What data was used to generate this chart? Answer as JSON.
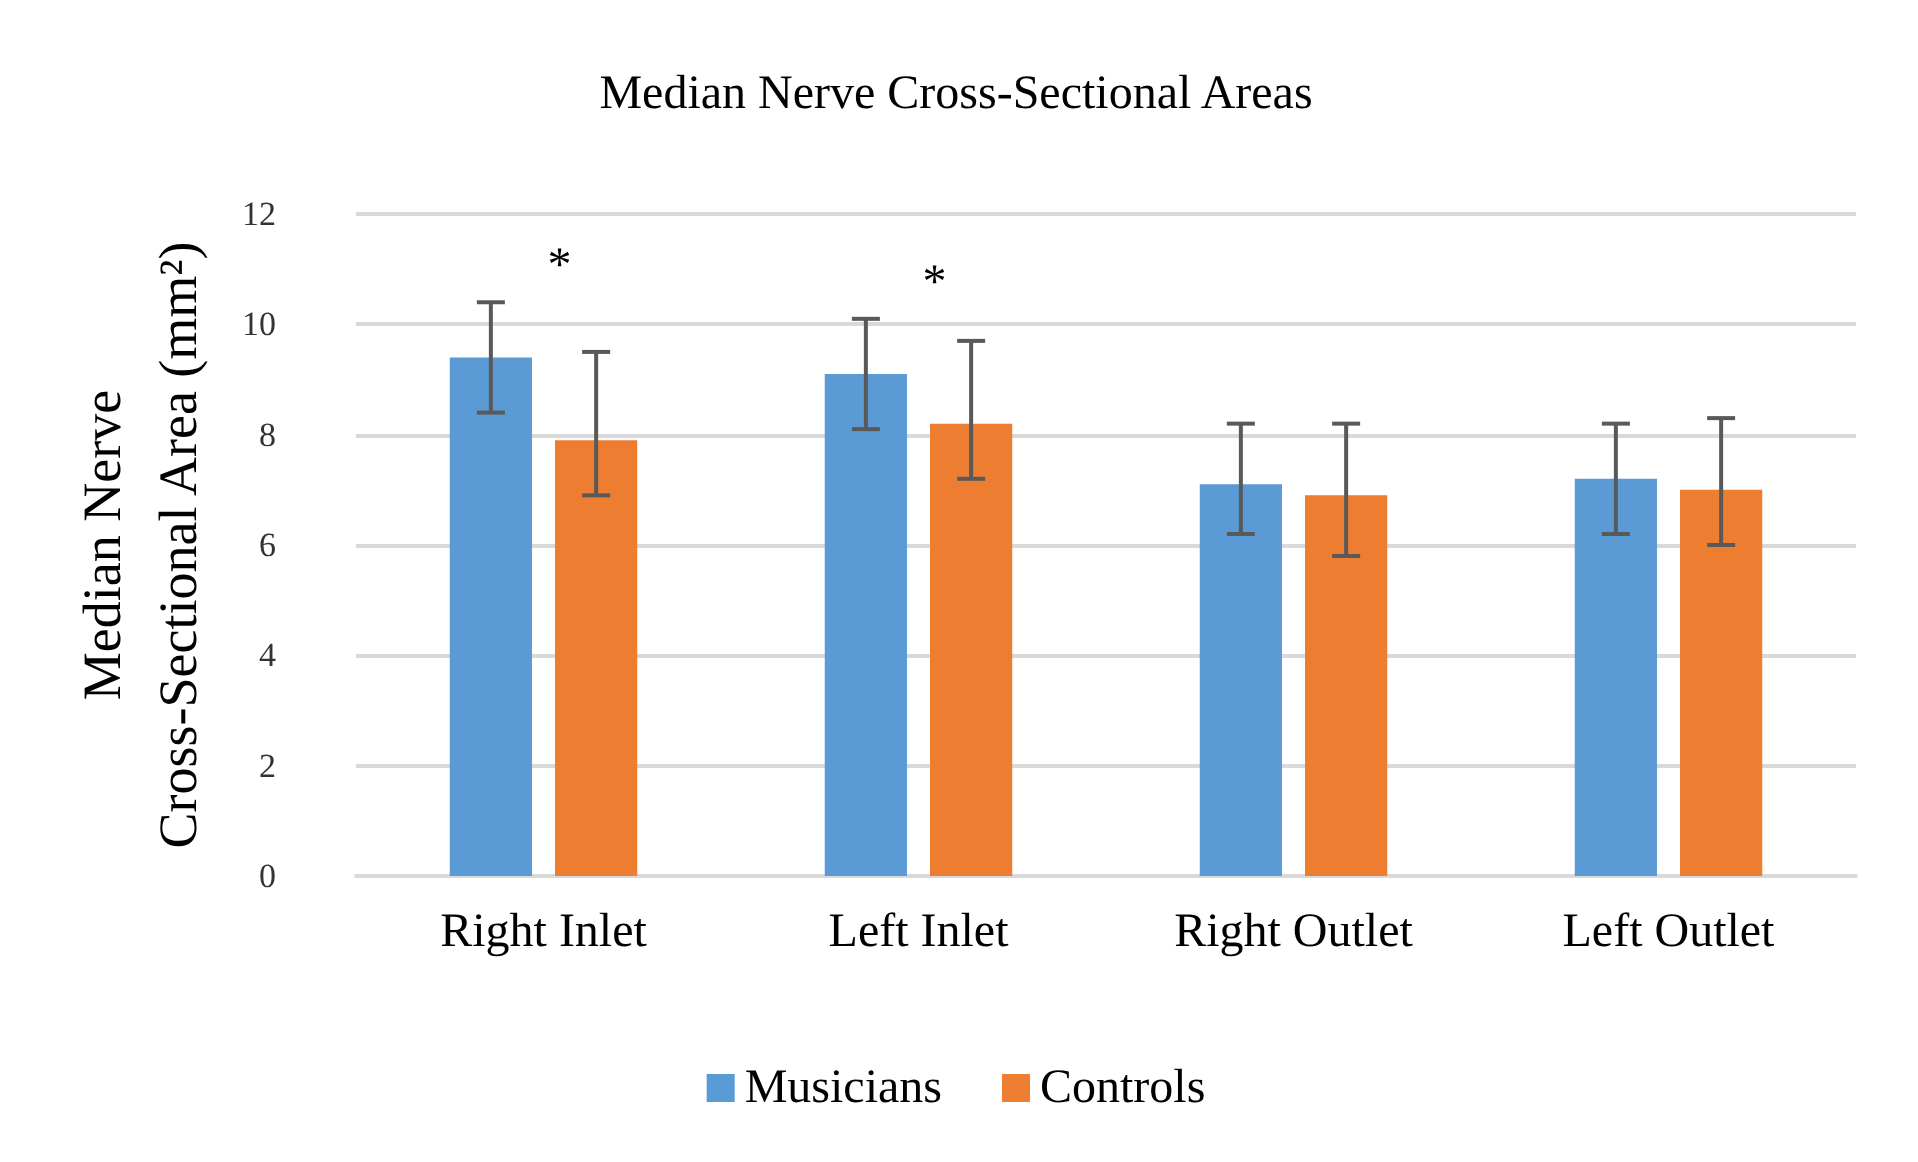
{
  "chart_data": {
    "type": "bar",
    "title": "Median Nerve Cross-Sectional Areas",
    "ylabel": "Median Nerve Cross-Sectional Area (mm²)",
    "categories": [
      "Right Inlet",
      "Left Inlet",
      "Right Outlet",
      "Left Outlet"
    ],
    "series": [
      {
        "name": "Musicians",
        "color": "#5b9bd5",
        "values": [
          9.4,
          9.1,
          7.1,
          7.2
        ],
        "errors": [
          [
            8.4,
            10.4
          ],
          [
            8.1,
            10.1
          ],
          [
            6.2,
            8.2
          ],
          [
            6.2,
            8.2
          ]
        ]
      },
      {
        "name": "Controls",
        "color": "#ed7d31",
        "values": [
          7.9,
          8.2,
          6.9,
          7.0
        ],
        "errors": [
          [
            6.9,
            9.5
          ],
          [
            7.2,
            9.7
          ],
          [
            5.8,
            8.2
          ],
          [
            6.0,
            8.3
          ]
        ]
      }
    ],
    "ylim": [
      0,
      12
    ],
    "yticks": [
      0,
      2,
      4,
      6,
      8,
      10,
      12
    ],
    "grid": "y",
    "legend": "bottom",
    "annotations": [
      "*",
      "*"
    ]
  }
}
